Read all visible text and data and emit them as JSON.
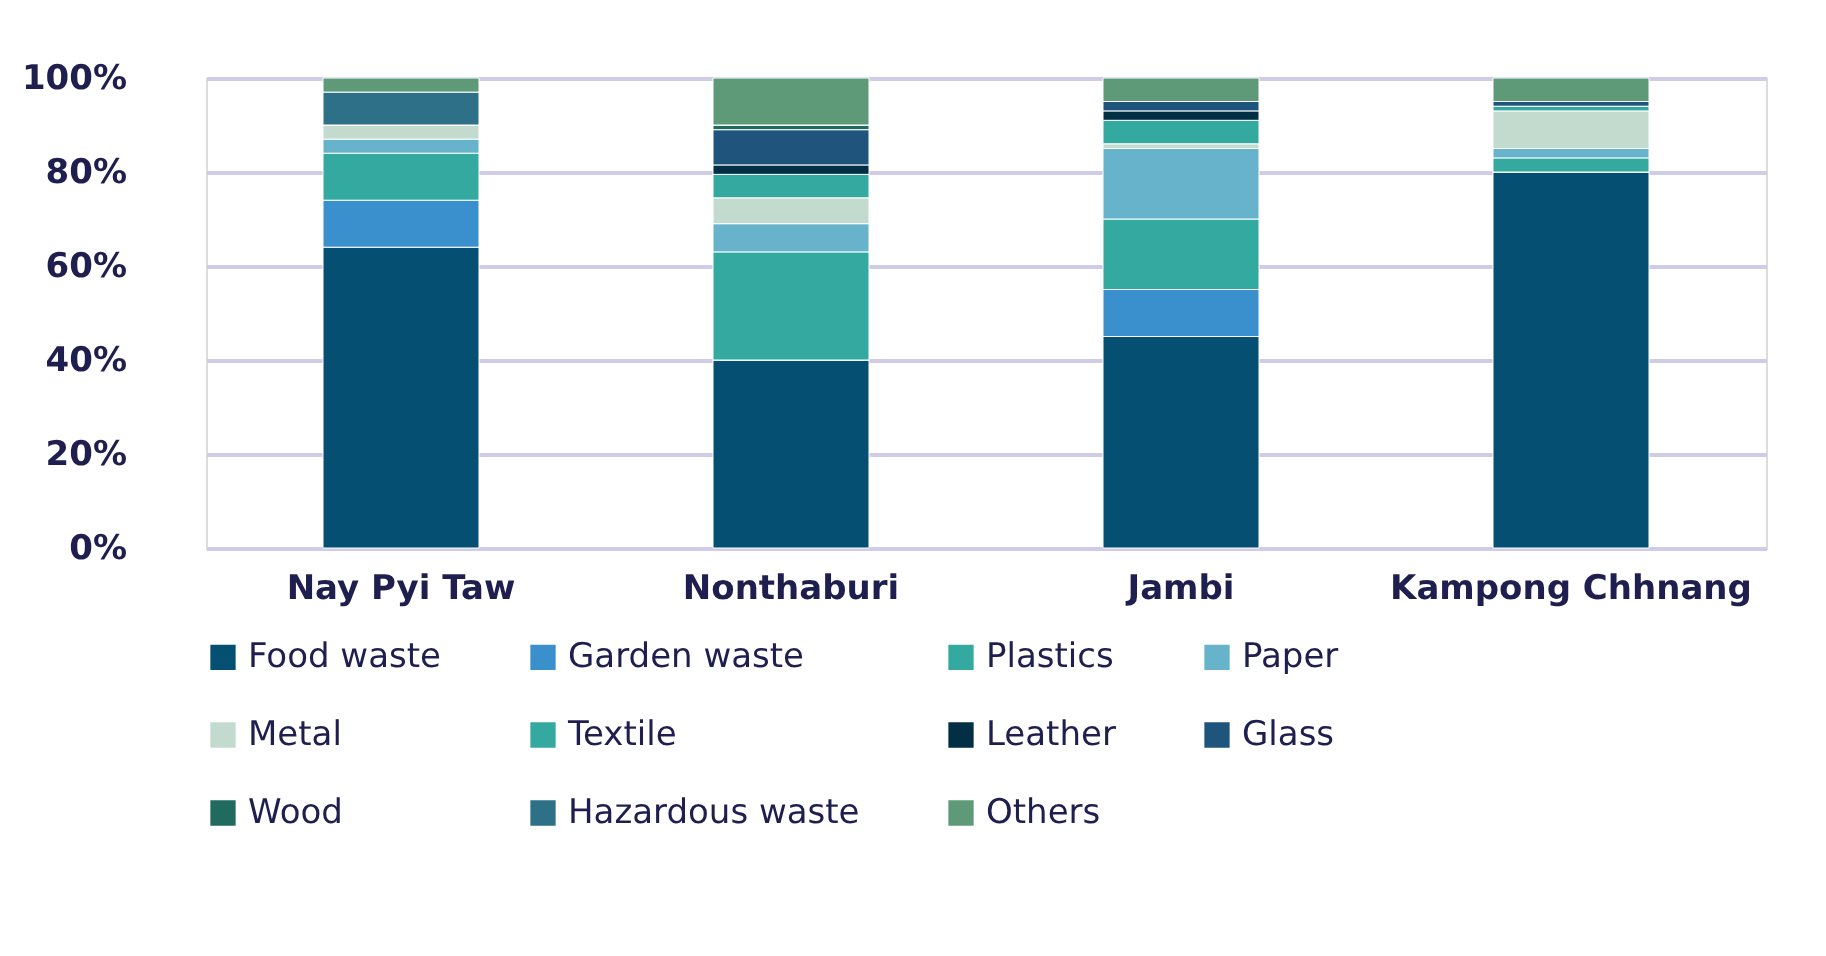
{
  "chart_data": {
    "type": "bar",
    "stacked": true,
    "categories": [
      "Nay Pyi Taw",
      "Nonthaburi",
      "Jambi",
      "Kampong Chhnang"
    ],
    "series": [
      {
        "name": "Food waste",
        "color": "#054f73",
        "values": [
          64,
          40,
          45,
          80
        ]
      },
      {
        "name": "Garden waste",
        "color": "#3a8fcd",
        "values": [
          10,
          0,
          10,
          0
        ]
      },
      {
        "name": "Plastics",
        "color": "#34a9a0",
        "values": [
          10,
          23,
          15,
          3
        ]
      },
      {
        "name": "Paper",
        "color": "#66b3cb",
        "values": [
          3,
          6,
          15,
          2
        ]
      },
      {
        "name": "Metal",
        "color": "#c3dbcf",
        "values": [
          3,
          5.5,
          1,
          8
        ]
      },
      {
        "name": "Textile",
        "color": "#34a9a0",
        "values": [
          0,
          5,
          5,
          1
        ]
      },
      {
        "name": "Leather",
        "color": "#032f45",
        "values": [
          0,
          2,
          2,
          0
        ]
      },
      {
        "name": "Glass",
        "color": "#1f547c",
        "values": [
          0,
          7.5,
          2,
          1
        ]
      },
      {
        "name": "Wood",
        "color": "#216a5e",
        "values": [
          0,
          1,
          0,
          0
        ]
      },
      {
        "name": "Hazardous waste",
        "color": "#2f7089",
        "values": [
          7,
          0,
          0,
          0
        ]
      },
      {
        "name": "Others",
        "color": "#5e9a78",
        "values": [
          3,
          10,
          5,
          5
        ]
      }
    ],
    "ylim": [
      0,
      100
    ],
    "yticks": [
      {
        "value": 0,
        "label": "0%"
      },
      {
        "value": 20,
        "label": "20%"
      },
      {
        "value": 40,
        "label": "40%"
      },
      {
        "value": 60,
        "label": "60%"
      },
      {
        "value": 80,
        "label": "80%"
      },
      {
        "value": 100,
        "label": "100%"
      }
    ],
    "grid": "y",
    "legend": "bottom"
  }
}
